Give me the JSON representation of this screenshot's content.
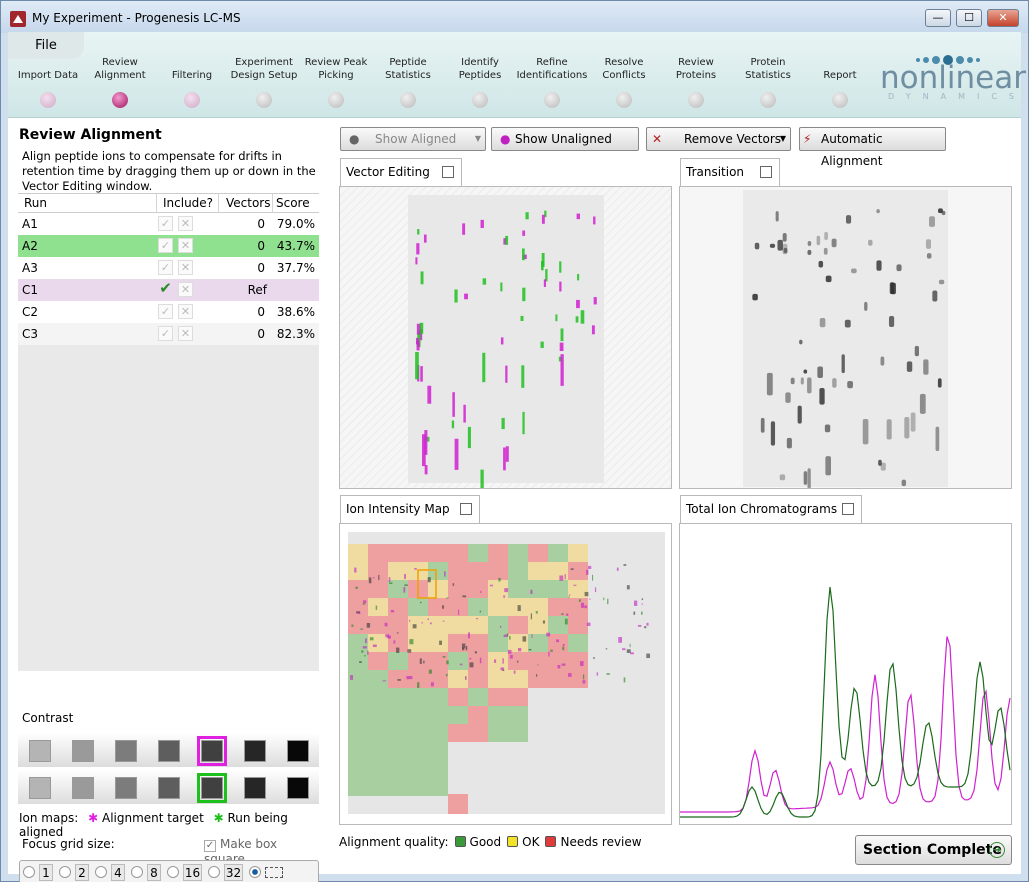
{
  "window": {
    "title": "My Experiment - Progenesis LC-MS",
    "min": "—",
    "max": "☐",
    "close": "✕"
  },
  "menu": {
    "file": "File"
  },
  "workflow": [
    {
      "l1": "",
      "l2": "Import Data",
      "state": "done"
    },
    {
      "l1": "Review",
      "l2": "Alignment",
      "state": "active"
    },
    {
      "l1": "",
      "l2": "Filtering",
      "state": "done"
    },
    {
      "l1": "Experiment",
      "l2": "Design Setup",
      "state": "todo"
    },
    {
      "l1": "Review Peak",
      "l2": "Picking",
      "state": "todo"
    },
    {
      "l1": "Peptide",
      "l2": "Statistics",
      "state": "todo"
    },
    {
      "l1": "Identify",
      "l2": "Peptides",
      "state": "todo"
    },
    {
      "l1": "Refine",
      "l2": "Identifications",
      "state": "todo"
    },
    {
      "l1": "Resolve",
      "l2": "Conflicts",
      "state": "todo"
    },
    {
      "l1": "Review",
      "l2": "Proteins",
      "state": "todo"
    },
    {
      "l1": "Protein",
      "l2": "Statistics",
      "state": "todo"
    },
    {
      "l1": "",
      "l2": "Report",
      "state": "todo"
    }
  ],
  "logo": {
    "name": "nonlinear",
    "sub": "DYNAMICS"
  },
  "panel": {
    "title": "Review Alignment",
    "description": "Align peptide ions to compensate for drifts in retention time by dragging them up or down in the Vector Editing window."
  },
  "table": {
    "headers": {
      "run": "Run",
      "include": "Include?",
      "vectors": "Vectors",
      "score": "Score"
    },
    "rows": [
      {
        "run": "A1",
        "vectors": "0",
        "score": "79.0%",
        "style": "",
        "ref": false
      },
      {
        "run": "A2",
        "vectors": "0",
        "score": "43.7%",
        "style": "sel",
        "ref": false
      },
      {
        "run": "A3",
        "vectors": "0",
        "score": "37.7%",
        "style": "",
        "ref": false
      },
      {
        "run": "C1",
        "vectors": "Ref",
        "score": "",
        "style": "ref",
        "ref": true
      },
      {
        "run": "C2",
        "vectors": "0",
        "score": "38.6%",
        "style": "",
        "ref": false
      },
      {
        "run": "C3",
        "vectors": "0",
        "score": "82.3%",
        "style": "alt",
        "ref": false
      }
    ]
  },
  "contrast": {
    "label": "Contrast",
    "swatches": [
      "#b4b4b4",
      "#9a9a9a",
      "#7c7c7c",
      "#5e5e5e",
      "#404040",
      "#262626",
      "#080808"
    ],
    "selected_target": 4,
    "selected_aligned": 4
  },
  "ionmaps": {
    "label": "Ion maps:",
    "target": "Alignment target",
    "aligned": "Run being aligned"
  },
  "focus": {
    "label": "Focus grid size:",
    "makebox": "Make box square",
    "sizes": [
      "1",
      "2",
      "4",
      "8",
      "16",
      "32"
    ]
  },
  "toolbar": {
    "show_aligned": "Show Aligned",
    "show_unaligned": "Show Unaligned",
    "remove_vectors": "Remove Vectors",
    "automatic_alignment": "Automatic Alignment"
  },
  "panes": {
    "vector_editing": "Vector Editing",
    "transition": "Transition",
    "ion_intensity": "Ion Intensity Map",
    "tic": "Total Ion Chromatograms"
  },
  "quality": {
    "label": "Alignment quality:",
    "good": "Good",
    "ok": "OK",
    "needs_review": "Needs review",
    "colors": {
      "good": "#3a9a3a",
      "ok": "#f2e22a",
      "needs_review": "#e03a3a"
    }
  },
  "section_complete": "Section Complete"
}
